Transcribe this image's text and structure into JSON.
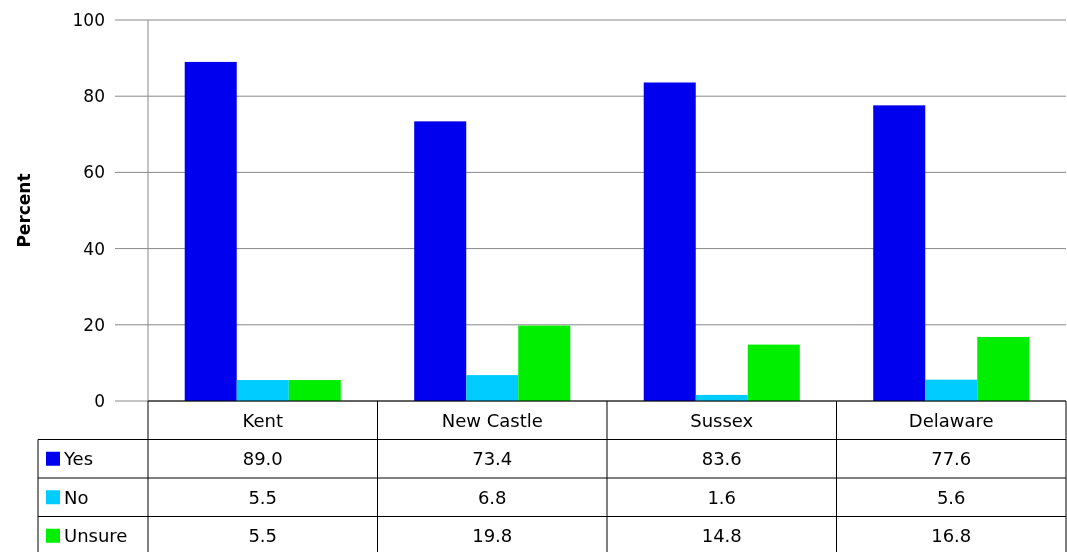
{
  "chart_data": {
    "type": "bar",
    "ylabel": "Percent",
    "categories": [
      "Kent",
      "New Castle",
      "Sussex",
      "Delaware"
    ],
    "series": [
      {
        "name": "Yes",
        "color": "#0000ee",
        "values": [
          89.0,
          73.4,
          83.6,
          77.6
        ],
        "value_labels": [
          "89.0",
          "73.4",
          "83.6",
          "77.6"
        ]
      },
      {
        "name": "No",
        "color": "#00ccff",
        "values": [
          5.5,
          6.8,
          1.6,
          5.6
        ],
        "value_labels": [
          "5.5",
          "6.8",
          "1.6",
          "5.6"
        ]
      },
      {
        "name": "Unsure",
        "color": "#00ee00",
        "values": [
          5.5,
          19.8,
          14.8,
          16.8
        ],
        "value_labels": [
          "5.5",
          "19.8",
          "14.8",
          "16.8"
        ]
      }
    ],
    "ylim": [
      0,
      100
    ],
    "yticks": [
      0,
      20,
      40,
      60,
      80,
      100
    ],
    "grid": "y",
    "legend": "bottom"
  }
}
